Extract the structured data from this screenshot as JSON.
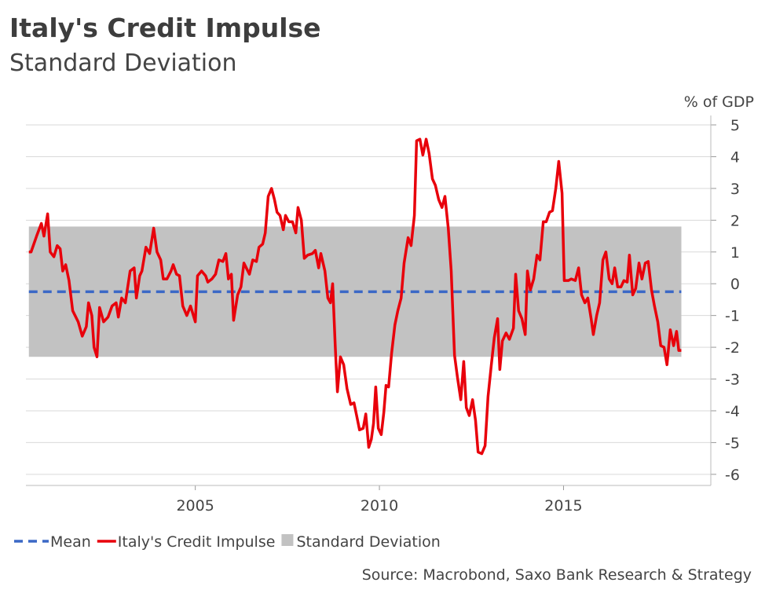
{
  "chart_data": {
    "type": "line",
    "title": "Italy's Credit Impulse",
    "subtitle": "Standard Deviation",
    "y_label": "% of GDP",
    "source": "Source: Macrobond, Saxo Bank Research & Strategy",
    "xlim": [
      2000.4,
      2019
    ],
    "xticks": [
      2005,
      2010,
      2015
    ],
    "ylim": [
      -6.35,
      5
    ],
    "yticks": [
      5,
      4,
      3,
      2,
      1,
      0,
      -1,
      -2,
      -3,
      -4,
      -5,
      -6
    ],
    "grid": true,
    "legend": "bottom",
    "x": [
      2000.48,
      2000.54,
      2000.69,
      2000.82,
      2000.89,
      2000.99,
      2001.06,
      2001.16,
      2001.25,
      2001.33,
      2001.4,
      2001.48,
      2001.57,
      2001.67,
      2001.82,
      2001.93,
      2002.04,
      2002.1,
      2002.19,
      2002.25,
      2002.33,
      2002.4,
      2002.51,
      2002.63,
      2002.74,
      2002.85,
      2002.91,
      2003.0,
      2003.1,
      2003.23,
      2003.34,
      2003.4,
      2003.49,
      2003.55,
      2003.66,
      2003.76,
      2003.87,
      2003.96,
      2004.06,
      2004.13,
      2004.23,
      2004.34,
      2004.4,
      2004.49,
      2004.57,
      2004.66,
      2004.77,
      2004.87,
      2005.0,
      2005.06,
      2005.17,
      2005.28,
      2005.34,
      2005.45,
      2005.55,
      2005.64,
      2005.75,
      2005.83,
      2005.9,
      2005.98,
      2006.04,
      2006.15,
      2006.24,
      2006.32,
      2006.47,
      2006.56,
      2006.66,
      2006.73,
      2006.83,
      2006.9,
      2006.98,
      2007.07,
      2007.15,
      2007.22,
      2007.3,
      2007.39,
      2007.45,
      2007.54,
      2007.64,
      2007.73,
      2007.79,
      2007.88,
      2007.96,
      2008.05,
      2008.18,
      2008.26,
      2008.35,
      2008.41,
      2008.52,
      2008.6,
      2008.67,
      2008.73,
      2008.8,
      2008.86,
      2008.94,
      2009.03,
      2009.12,
      2009.22,
      2009.31,
      2009.39,
      2009.46,
      2009.56,
      2009.63,
      2009.71,
      2009.78,
      2009.84,
      2009.9,
      2009.97,
      2010.05,
      2010.12,
      2010.18,
      2010.25,
      2010.33,
      2010.42,
      2010.5,
      2010.59,
      2010.67,
      2010.78,
      2010.86,
      2010.95,
      2011.01,
      2011.1,
      2011.18,
      2011.27,
      2011.35,
      2011.44,
      2011.52,
      2011.61,
      2011.7,
      2011.78,
      2011.87,
      2011.95,
      2012.04,
      2012.12,
      2012.21,
      2012.29,
      2012.36,
      2012.44,
      2012.53,
      2012.61,
      2012.68,
      2012.78,
      2012.87,
      2012.95,
      2013.04,
      2013.12,
      2013.21,
      2013.27,
      2013.34,
      2013.44,
      2013.53,
      2013.64,
      2013.7,
      2013.78,
      2013.87,
      2013.96,
      2014.02,
      2014.1,
      2014.19,
      2014.28,
      2014.36,
      2014.45,
      2014.53,
      2014.62,
      2014.7,
      2014.79,
      2014.87,
      2014.96,
      2015.02,
      2015.13,
      2015.21,
      2015.32,
      2015.41,
      2015.49,
      2015.58,
      2015.66,
      2015.75,
      2015.81,
      2015.9,
      2015.98,
      2016.07,
      2016.15,
      2016.24,
      2016.32,
      2016.39,
      2016.47,
      2016.56,
      2016.64,
      2016.73,
      2016.79,
      2016.88,
      2016.96,
      2017.05,
      2017.13,
      2017.22,
      2017.3,
      2017.39,
      2017.47,
      2017.56,
      2017.64,
      2017.73,
      2017.81,
      2017.9,
      2017.99,
      2018.07,
      2018.13,
      2018.2
    ],
    "series": [
      {
        "name": "Mean",
        "color": "#3b68c6",
        "dashed": true,
        "value": -0.25,
        "x": [
          2000.48,
          2018.2
        ]
      },
      {
        "name": "Italy's Credit Impulse",
        "color": "#e8000b",
        "values": [
          1.0,
          1.0,
          1.5,
          1.9,
          1.5,
          2.2,
          1.0,
          0.85,
          1.2,
          1.1,
          0.4,
          0.6,
          0.1,
          -0.85,
          -1.2,
          -1.65,
          -1.35,
          -0.6,
          -1.0,
          -2.0,
          -2.3,
          -0.75,
          -1.2,
          -1.05,
          -0.7,
          -0.6,
          -1.05,
          -0.45,
          -0.6,
          0.4,
          0.5,
          -0.45,
          0.25,
          0.4,
          1.15,
          0.95,
          1.75,
          1.0,
          0.75,
          0.15,
          0.15,
          0.4,
          0.6,
          0.3,
          0.25,
          -0.7,
          -1.0,
          -0.7,
          -1.2,
          0.25,
          0.4,
          0.25,
          0.05,
          0.15,
          0.3,
          0.75,
          0.7,
          0.95,
          0.15,
          0.3,
          -1.15,
          -0.35,
          -0.1,
          0.65,
          0.3,
          0.75,
          0.7,
          1.15,
          1.25,
          1.6,
          2.75,
          3.0,
          2.65,
          2.25,
          2.15,
          1.7,
          2.15,
          1.95,
          1.95,
          1.6,
          2.4,
          2.0,
          0.8,
          0.9,
          0.95,
          1.05,
          0.5,
          0.95,
          0.4,
          -0.45,
          -0.6,
          0.0,
          -1.95,
          -3.4,
          -2.3,
          -2.55,
          -3.3,
          -3.8,
          -3.75,
          -4.2,
          -4.6,
          -4.55,
          -4.1,
          -5.15,
          -4.9,
          -4.4,
          -3.25,
          -4.55,
          -4.75,
          -4.05,
          -3.2,
          -3.25,
          -2.2,
          -1.3,
          -0.85,
          -0.45,
          0.65,
          1.45,
          1.2,
          2.15,
          4.5,
          4.55,
          4.05,
          4.55,
          4.1,
          3.3,
          3.1,
          2.65,
          2.4,
          2.75,
          1.75,
          0.4,
          -2.25,
          -2.95,
          -3.65,
          -2.45,
          -3.9,
          -4.15,
          -3.65,
          -4.3,
          -5.3,
          -5.35,
          -5.1,
          -3.55,
          -2.55,
          -1.7,
          -1.1,
          -2.7,
          -1.8,
          -1.55,
          -1.75,
          -1.4,
          0.3,
          -0.85,
          -1.1,
          -1.6,
          0.4,
          -0.2,
          0.15,
          0.9,
          0.75,
          1.95,
          1.95,
          2.25,
          2.3,
          3.0,
          3.85,
          2.85,
          0.1,
          0.1,
          0.15,
          0.1,
          0.5,
          -0.35,
          -0.6,
          -0.45,
          -1.1,
          -1.6,
          -1.0,
          -0.6,
          0.75,
          1.0,
          0.15,
          0.0,
          0.5,
          -0.1,
          -0.1,
          0.1,
          0.05,
          0.9,
          -0.35,
          -0.15,
          0.65,
          0.15,
          0.65,
          0.7,
          -0.2,
          -0.7,
          -1.2,
          -1.95,
          -2.0,
          -2.55,
          -1.45,
          -1.95,
          -1.5,
          -2.1,
          -2.1
        ]
      },
      {
        "name": "Standard Deviation",
        "color": "#c2c2c2",
        "upper": 1.8,
        "lower": -2.3,
        "x": [
          2000.48,
          2018.2
        ]
      }
    ]
  }
}
